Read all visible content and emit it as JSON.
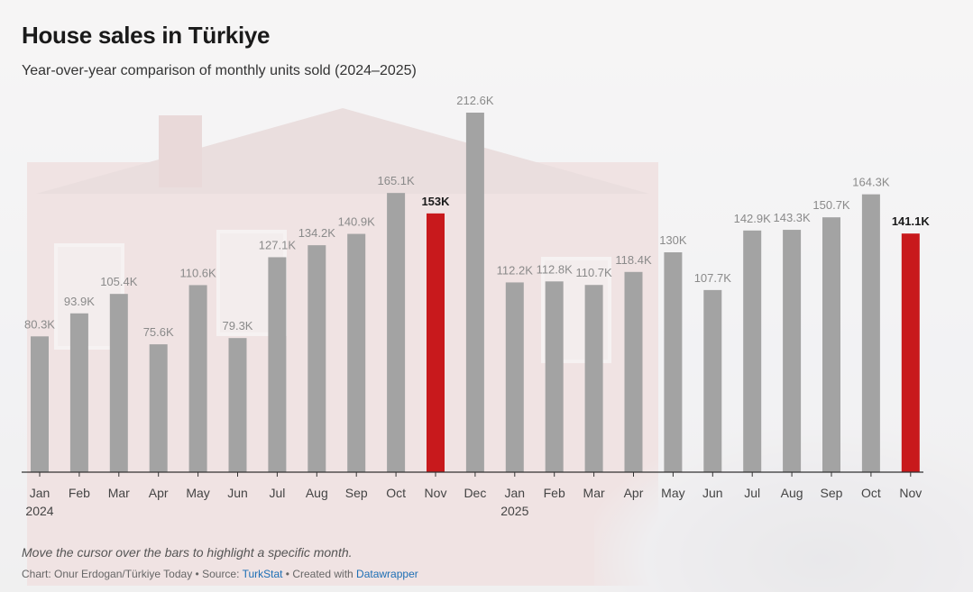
{
  "header": {
    "title": "House sales in Türkiye",
    "subtitle": "Year-over-year comparison of monthly units sold (2024–2025)"
  },
  "footer": {
    "note": "Move the cursor over the bars to highlight a specific month.",
    "chart_by": "Chart: Onur Erdogan/Türkiye Today",
    "sep1": " • Source: ",
    "source": "TurkStat",
    "sep2": " • Created with ",
    "tool": "Datawrapper"
  },
  "colors": {
    "bar": "#a3a3a3",
    "highlight": "#c8191c",
    "axis": "#333333"
  },
  "chart_data": {
    "type": "bar",
    "title": "House sales in Türkiye",
    "subtitle": "Year-over-year comparison of monthly units sold (2024–2025)",
    "categories": [
      "Jan",
      "Feb",
      "Mar",
      "Apr",
      "May",
      "Jun",
      "Jul",
      "Aug",
      "Sep",
      "Oct",
      "Nov",
      "Dec",
      "Jan",
      "Feb",
      "Mar",
      "Apr",
      "May",
      "Jun",
      "Jul",
      "Aug",
      "Sep",
      "Oct",
      "Nov"
    ],
    "year_labels": [
      "2024",
      "",
      "",
      "",
      "",
      "",
      "",
      "",
      "",
      "",
      "",
      "",
      "2025",
      "",
      "",
      "",
      "",
      "",
      "",
      "",
      "",
      "",
      ""
    ],
    "values": [
      80.3,
      93.9,
      105.4,
      75.6,
      110.6,
      79.3,
      127.1,
      134.2,
      140.9,
      165.1,
      153,
      212.6,
      112.2,
      112.8,
      110.7,
      118.4,
      130,
      107.7,
      142.9,
      143.3,
      150.7,
      164.3,
      141.1
    ],
    "value_labels": [
      "80.3K",
      "93.9K",
      "105.4K",
      "75.6K",
      "110.6K",
      "79.3K",
      "127.1K",
      "134.2K",
      "140.9K",
      "165.1K",
      "153K",
      "212.6K",
      "112.2K",
      "112.8K",
      "110.7K",
      "118.4K",
      "130K",
      "107.7K",
      "142.9K",
      "143.3K",
      "150.7K",
      "164.3K",
      "141.1K"
    ],
    "highlighted": [
      10,
      22
    ],
    "unit": "thousand units",
    "ylim": [
      0,
      212.6
    ],
    "grid": false,
    "legend": "none"
  }
}
